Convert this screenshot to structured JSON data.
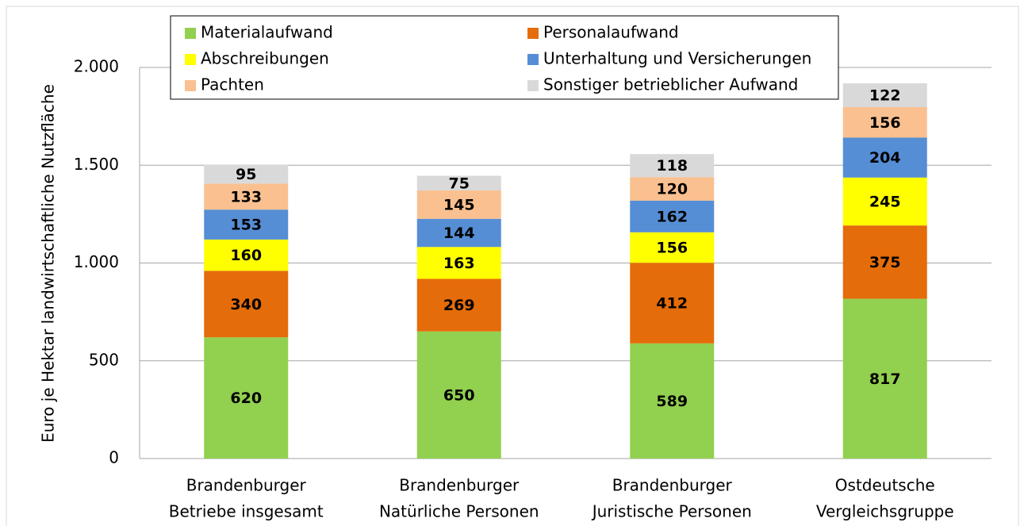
{
  "chart_data": {
    "type": "stacked_bar",
    "y_label": "Euro je Hektar landwirtschaftliche Nutzfläche",
    "categories": [
      [
        "Brandenburger",
        "Betriebe insgesamt"
      ],
      [
        "Brandenburger",
        "Natürliche Personen"
      ],
      [
        "Brandenburger",
        "Juristische Personen"
      ],
      [
        "Ostdeutsche",
        "Vergleichsgruppe"
      ]
    ],
    "series": [
      {
        "name": "Materialaufwand",
        "color": "#92d050",
        "values": [
          620,
          650,
          589,
          817
        ]
      },
      {
        "name": "Personalaufwand",
        "color": "#e46c0a",
        "values": [
          340,
          269,
          412,
          375
        ]
      },
      {
        "name": "Abschreibungen",
        "color": "#ffff00",
        "values": [
          160,
          163,
          156,
          245
        ]
      },
      {
        "name": "Unterhaltung und Versicherungen",
        "color": "#558ed5",
        "values": [
          153,
          144,
          162,
          204
        ]
      },
      {
        "name": "Pachten",
        "color": "#fac090",
        "values": [
          133,
          145,
          120,
          156
        ]
      },
      {
        "name": "Sonstiger betrieblicher Aufwand",
        "color": "#d9d9d9",
        "values": [
          95,
          75,
          118,
          122
        ]
      }
    ],
    "ylim": [
      0,
      2000
    ],
    "yticks": [
      0,
      500,
      {
        "value": 1000,
        "label": "1.000"
      },
      {
        "value": 1500,
        "label": "1.500"
      },
      {
        "value": 2000,
        "label": "2.000"
      }
    ],
    "grid": true
  }
}
